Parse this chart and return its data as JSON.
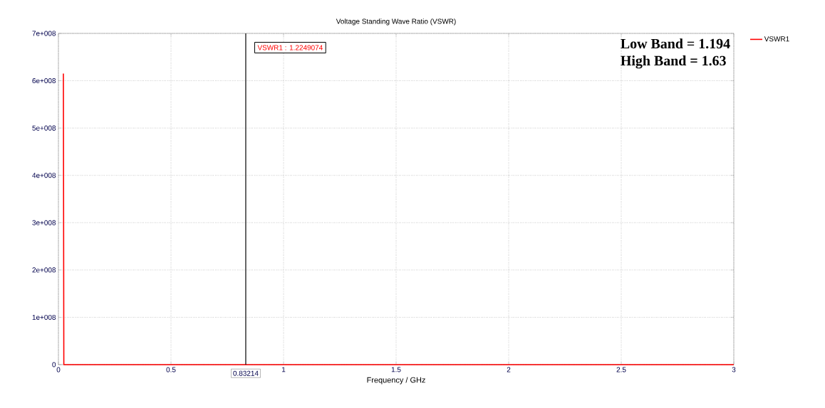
{
  "chart_data": {
    "type": "line",
    "title": "Voltage Standing Wave Ratio (VSWR)",
    "xlabel": "Frequency / GHz",
    "x": [
      0.022,
      0.024,
      3
    ],
    "series": [
      {
        "name": "VSWR1",
        "color": "#ff0000",
        "values": [
          615000000,
          0,
          0
        ]
      }
    ],
    "xlim": [
      0,
      3
    ],
    "xticks": [
      0,
      0.5,
      1,
      1.5,
      2,
      2.5,
      3
    ],
    "ylim": [
      0,
      700000000
    ],
    "yticks": [
      0,
      {
        "value": 100000000,
        "label": "1e+008"
      },
      {
        "value": 200000000,
        "label": "2e+008"
      },
      {
        "value": 300000000,
        "label": "3e+008"
      },
      {
        "value": 400000000,
        "label": "4e+008"
      },
      {
        "value": 500000000,
        "label": "5e+008"
      },
      {
        "value": 600000000,
        "label": "6e+008"
      },
      {
        "value": 700000000,
        "label": "7e+008"
      }
    ],
    "ref_lines": [
      {
        "axis": "x",
        "value": 0.83214,
        "label": "0.83214",
        "color": "#000000"
      }
    ],
    "annotations": [
      "VSWR1 : 1.2249074",
      "Low Band = 1.194",
      "High Band = 1.63"
    ],
    "grid": true,
    "legend": "right",
    "marker": "none",
    "line_style": "solid"
  }
}
